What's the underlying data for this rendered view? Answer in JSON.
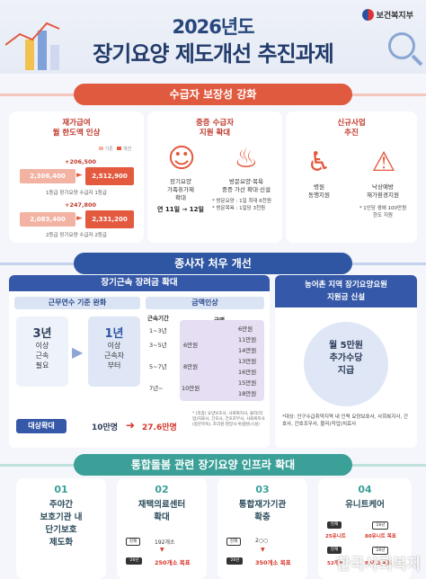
{
  "header": {
    "ministry": "보건복지부",
    "year_title": "2026년도",
    "main_title": "장기요양 제도개선 추진과제"
  },
  "section1": {
    "title": "수급자 보장성 강화",
    "card1": {
      "title_line1": "재가급여",
      "title_line2": "월 한도액 인상",
      "legend_old": "기존",
      "legend_new": "개선",
      "grade1": {
        "increase": "+206,500",
        "old": "2,306,400",
        "new": "2,512,900",
        "caption": "1등급 장기요양 수급자 1등급"
      },
      "grade2": {
        "increase": "+247,800",
        "old": "2,083,400",
        "new": "2,331,200",
        "caption": "2등급 장기요양 수급자 2등급"
      }
    },
    "card2": {
      "title_line1": "중증 수급자",
      "title_line2": "지원 확대",
      "item1_line1": "장기요양",
      "item1_line2": "가족휴가제",
      "item1_line3": "확대",
      "item1_period": "연 11일 → 12일",
      "item2_line1": "방문요양·목욕",
      "item2_line2": "중증 가산 확대·신설",
      "note1": "* 방문요양 : 1일 최대 6천원",
      "note2": "* 방문목욕 : 1일당 3천원"
    },
    "card3": {
      "title_line1": "신규사업",
      "title_line2": "추진",
      "item1_line1": "병원",
      "item1_line2": "동행지원",
      "item2_line1": "낙상예방",
      "item2_line2": "재가환경지원",
      "note_line1": "* 1인당 생애 100만원",
      "note_line2": "한도 지원"
    }
  },
  "section2": {
    "title": "종사자 처우 개선",
    "left_header": "장기근속 장려금 확대",
    "cond_header": "근무연수 기준 완화",
    "amount_header": "금액인상",
    "before": {
      "line1": "3년",
      "line2": "이상",
      "line3": "근속",
      "line4": "필요"
    },
    "after": {
      "line1": "1년",
      "line2": "이상",
      "line3": "근속자",
      "line4": "부터"
    },
    "period_header": "근속기간",
    "amount_col": "금액",
    "periods": [
      "1~3년",
      "3~5년",
      "5~7년",
      "7년~"
    ],
    "amounts": [
      {
        "old": "",
        "new": "6만원"
      },
      {
        "old": "6만원",
        "new": "11만원"
      },
      {
        "old": "",
        "new": "14만원"
      },
      {
        "old": "8만원",
        "new": "13만원"
      },
      {
        "old": "",
        "new": "16만원"
      },
      {
        "old": "10만원",
        "new": "15만원"
      },
      {
        "old": "",
        "new": "18만원"
      }
    ],
    "target_label": "대상확대",
    "target_old": "10만명",
    "target_new": "27.6만명",
    "footnote": "* (직종) 요양보호사, 사회복지사, 물리(작업)치료사, 간호사, 간호조무사, 사회복지사(방문목욕), 조리원·영양사·위생원(시설)",
    "right_header_line1": "농어촌 지역 장기요양요원",
    "right_header_line2": "지원금 신설",
    "right_amount_line1": "월 5만원",
    "right_amount_line2": "추가수당",
    "right_amount_line3": "지급",
    "right_note": "*대상: 인구수급취약지역 내 인력 요양보호사, 사회복지사, 간호사, 간호조무사, 물리(작업)치료사"
  },
  "section3": {
    "title": "통합돌봄 관련 장기요양 인프라 확대",
    "cards": [
      {
        "num": "01",
        "line1": "주야간",
        "line2": "보호기관 내",
        "line3": "단기보호",
        "line4": "제도화"
      },
      {
        "num": "02",
        "line1": "재택의료센터",
        "line2": "확대",
        "current_tag": "현재",
        "current": "192개소",
        "target_tag": "'26년",
        "target": "250개소 목표"
      },
      {
        "num": "03",
        "line1": "통합재가기관",
        "line2": "확충",
        "current_tag": "현재",
        "current": "2○○",
        "target_tag": "'26년",
        "target": "350개소 목표"
      },
      {
        "num": "04",
        "line1": "유니트케어",
        "a_tag": "현재",
        "a_val": "25유니트",
        "a_tag2": "'26년",
        "a_target": "80유니트 목표",
        "b_tag": "현재",
        "b_val": "52개소",
        "b_tag2": "'26년",
        "b_target": "90개소 목표"
      }
    ]
  },
  "watermark": "한국사회복지",
  "colors": {
    "red": "#e05a3f",
    "blue": "#2f56a3",
    "teal": "#3aa098",
    "navy": "#223b6b"
  }
}
